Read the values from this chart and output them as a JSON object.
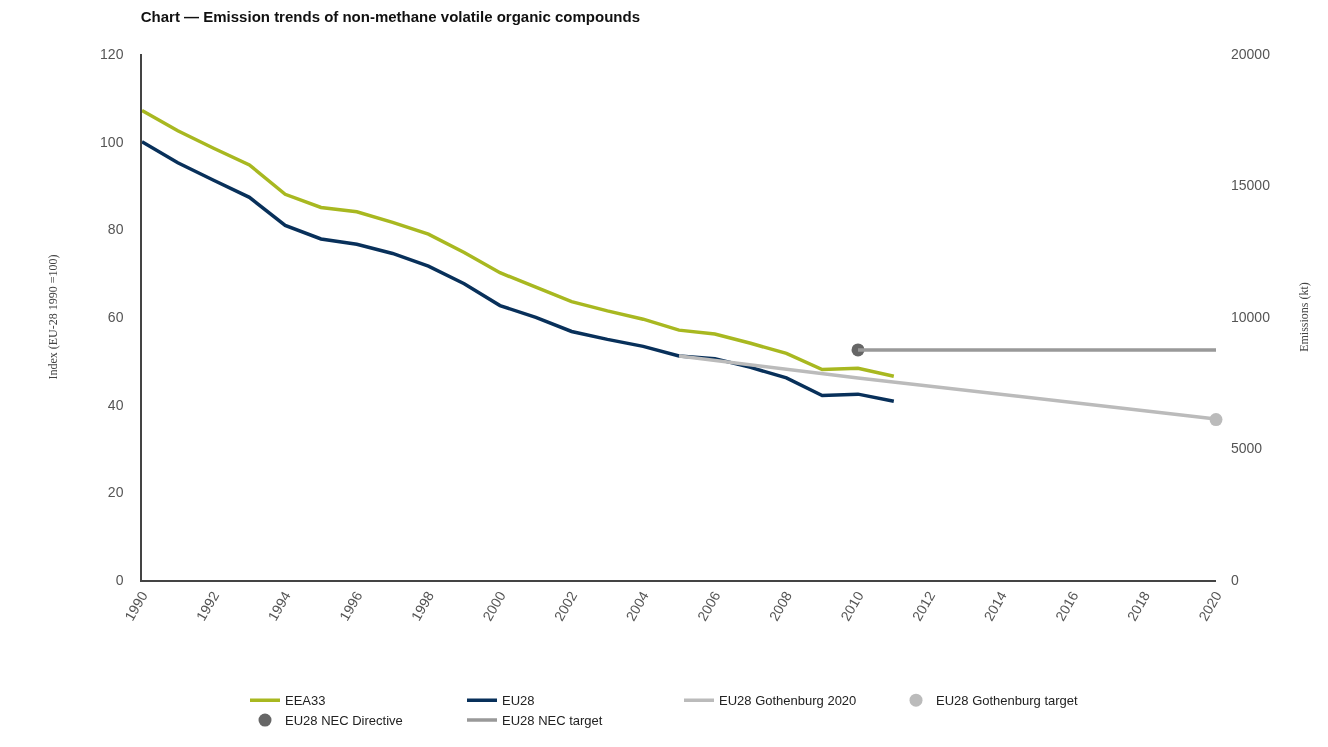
{
  "chart_data": {
    "type": "line",
    "title": "Chart — Emission trends of non-methane volatile organic compounds",
    "ylabel": "Index (EU-28 1990 =100)",
    "y2label": "Emissions (kt)",
    "xlim": [
      1990,
      2020
    ],
    "xticks": [
      1990,
      1992,
      1994,
      1996,
      1998,
      2000,
      2002,
      2004,
      2006,
      2008,
      2010,
      2012,
      2014,
      2016,
      2018,
      2020
    ],
    "ylim": [
      0,
      120
    ],
    "yticks": [
      0,
      20,
      40,
      60,
      80,
      100,
      120
    ],
    "y2lim": [
      0,
      20000
    ],
    "y2ticks": [
      0,
      5000,
      10000,
      15000,
      20000
    ],
    "legend": "bottom",
    "series": [
      {
        "name": "EEA33",
        "color": "#a8b820",
        "marker": "none",
        "x": [
          1990,
          1991,
          1992,
          1993,
          1994,
          1995,
          1996,
          1997,
          1998,
          1999,
          2000,
          2001,
          2002,
          2003,
          2004,
          2005,
          2006,
          2007,
          2008,
          2009,
          2010,
          2011
        ],
        "values": [
          107.1,
          102.5,
          98.5,
          94.7,
          88.0,
          85.0,
          84.0,
          81.6,
          78.9,
          74.7,
          70.1,
          66.8,
          63.5,
          61.4,
          59.5,
          57.0,
          56.1,
          54.0,
          51.7,
          48.0,
          48.3,
          46.5
        ]
      },
      {
        "name": "EU28",
        "color": "#08305a",
        "marker": "none",
        "x": [
          1990,
          1991,
          1992,
          1993,
          1994,
          1995,
          1996,
          1997,
          1998,
          1999,
          2000,
          2001,
          2002,
          2003,
          2004,
          2005,
          2006,
          2007,
          2008,
          2009,
          2010,
          2011
        ],
        "values": [
          100,
          95.2,
          91.2,
          87.3,
          80.9,
          77.8,
          76.6,
          74.5,
          71.6,
          67.6,
          62.6,
          59.9,
          56.7,
          54.9,
          53.3,
          51.1,
          50.5,
          48.5,
          46.1,
          42.1,
          42.4,
          40.8
        ]
      },
      {
        "name": "EU28 Gothenburg 2020",
        "color": "#bbbbbb",
        "marker": "none",
        "x": [
          2005,
          2010,
          2018,
          2020
        ],
        "values": [
          51.1,
          46.1,
          38.6,
          36.7
        ]
      },
      {
        "name": "EU28 Gothenburg target",
        "color": "#bbbbbb",
        "marker": "circle",
        "axis": "y2",
        "x": [
          2020
        ],
        "values": [
          6100
        ]
      },
      {
        "name": "EU28 NEC Directive",
        "color": "#666666",
        "marker": "circle",
        "axis": "y2",
        "x": [
          2010
        ],
        "values": [
          8750
        ]
      },
      {
        "name": "EU28 NEC target",
        "color": "#999999",
        "marker": "none",
        "axis": "y2",
        "x": [
          2010,
          2020
        ],
        "values": [
          8750,
          8750
        ]
      }
    ]
  }
}
